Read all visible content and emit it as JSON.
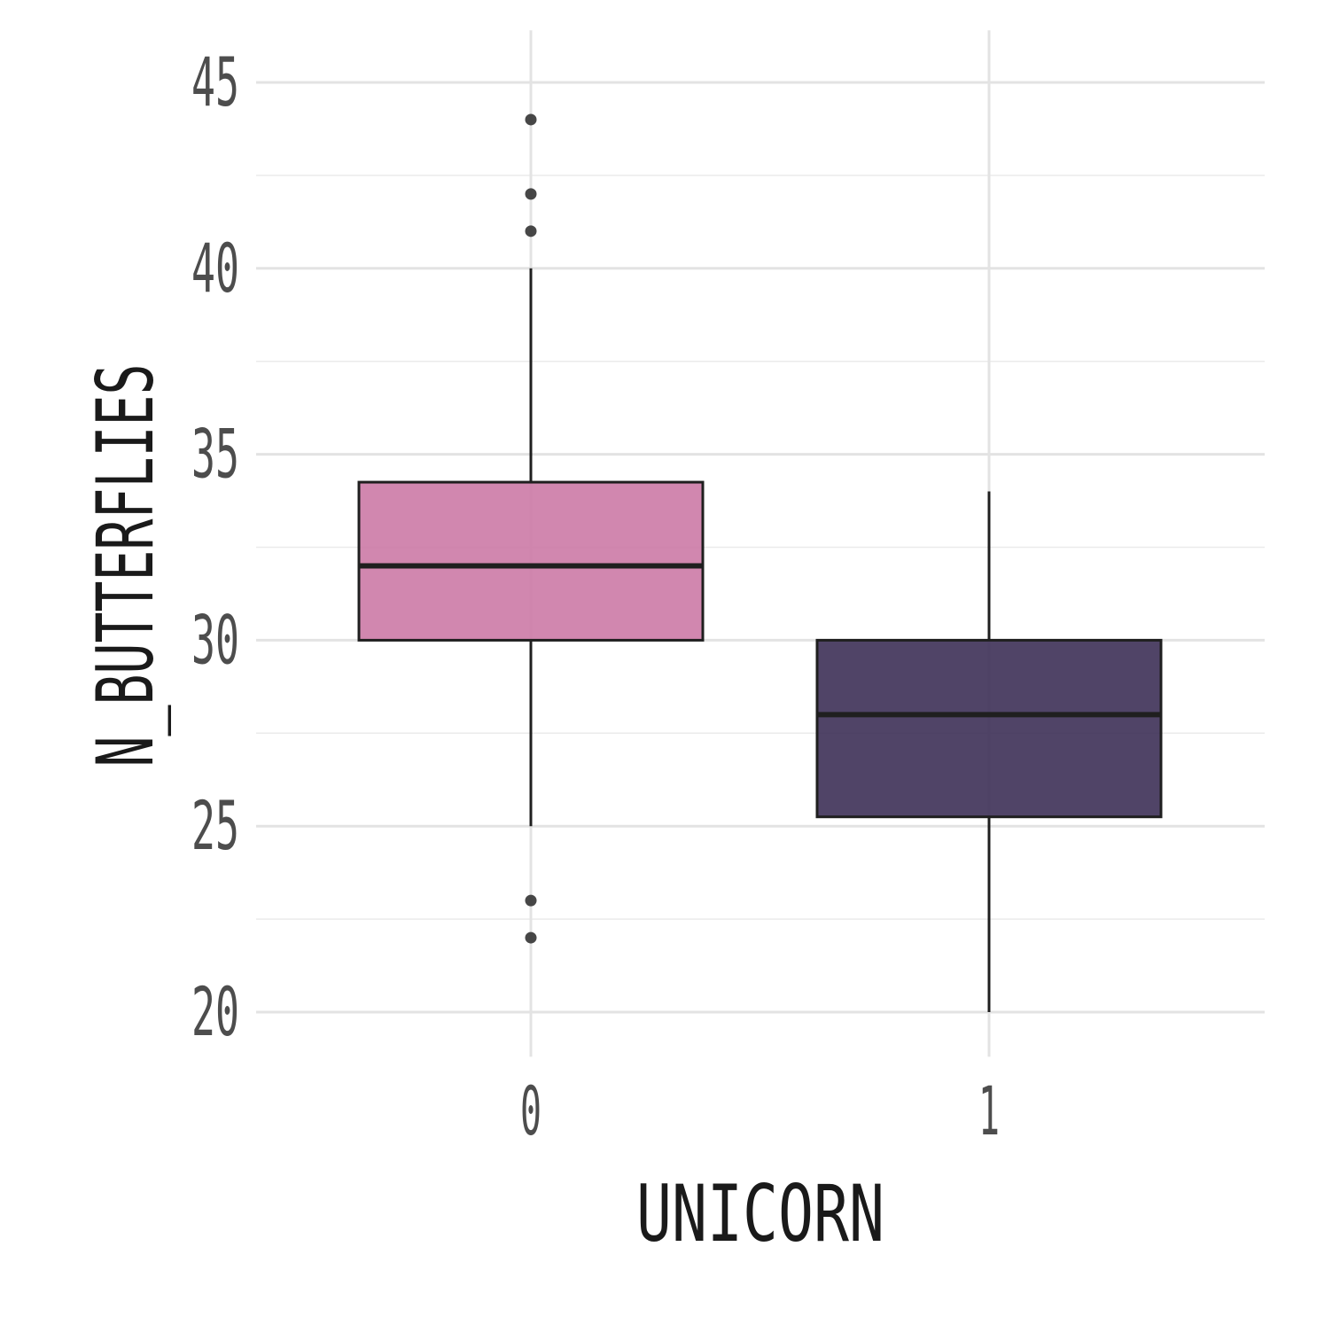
{
  "chart_data": {
    "type": "box",
    "xlabel": "UNICORN",
    "ylabel": "N_BUTTERFLIES",
    "ylim": [
      18.8,
      46.4
    ],
    "y_ticks": [
      20,
      25,
      30,
      35,
      40,
      45
    ],
    "grid": true,
    "categories": [
      "0",
      "1"
    ],
    "boxes": [
      {
        "category": "0",
        "q1": 30,
        "median": 32,
        "q3": 34.25,
        "whisker_low": 25,
        "whisker_high": 40,
        "outliers": [
          44,
          42,
          41,
          23,
          22
        ],
        "fill": "#cc7aa6"
      },
      {
        "category": "1",
        "q1": 25.25,
        "median": 28,
        "q3": 30,
        "whisker_low": 20,
        "whisker_high": 34,
        "outliers": [],
        "fill": "#3d3056"
      }
    ]
  }
}
